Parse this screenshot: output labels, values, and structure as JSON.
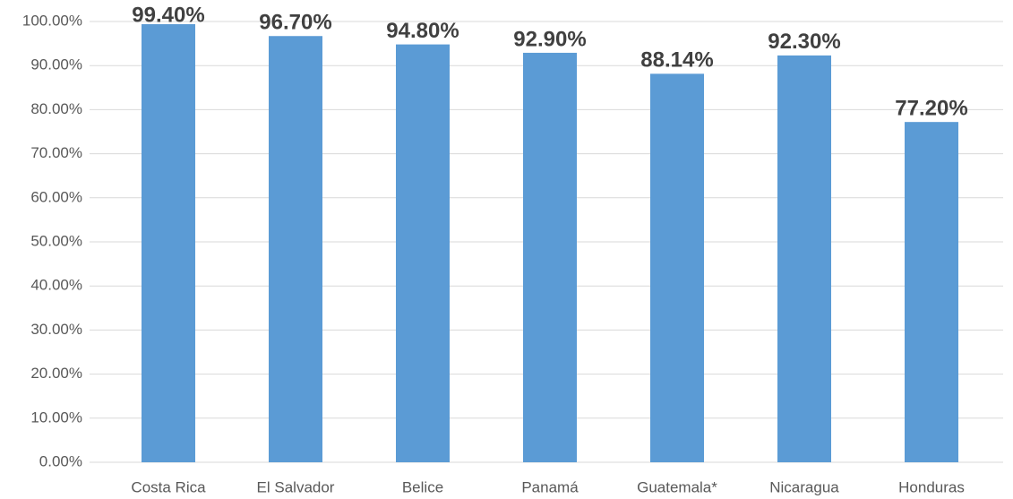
{
  "chart_data": {
    "type": "bar",
    "categories": [
      "Costa Rica",
      "El Salvador",
      "Belice",
      "Panamá",
      "Guatemala*",
      "Nicaragua",
      "Honduras"
    ],
    "values": [
      99.4,
      96.7,
      94.8,
      92.9,
      88.14,
      92.3,
      77.2
    ],
    "value_labels": [
      "99.40%",
      "96.70%",
      "94.80%",
      "92.90%",
      "88.14%",
      "92.30%",
      "77.20%"
    ],
    "color": "#5b9bd5",
    "ylim": [
      0,
      100
    ],
    "yticks": [
      {
        "value": 0,
        "label": "0.00%"
      },
      {
        "value": 10,
        "label": "10.00%"
      },
      {
        "value": 20,
        "label": "20.00%"
      },
      {
        "value": 30,
        "label": "30.00%"
      },
      {
        "value": 40,
        "label": "40.00%"
      },
      {
        "value": 50,
        "label": "50.00%"
      },
      {
        "value": 60,
        "label": "60.00%"
      },
      {
        "value": 70,
        "label": "70.00%"
      },
      {
        "value": 80,
        "label": "80.00%"
      },
      {
        "value": 90,
        "label": "90.00%"
      },
      {
        "value": 100,
        "label": "100.00%"
      }
    ],
    "grid": true
  }
}
